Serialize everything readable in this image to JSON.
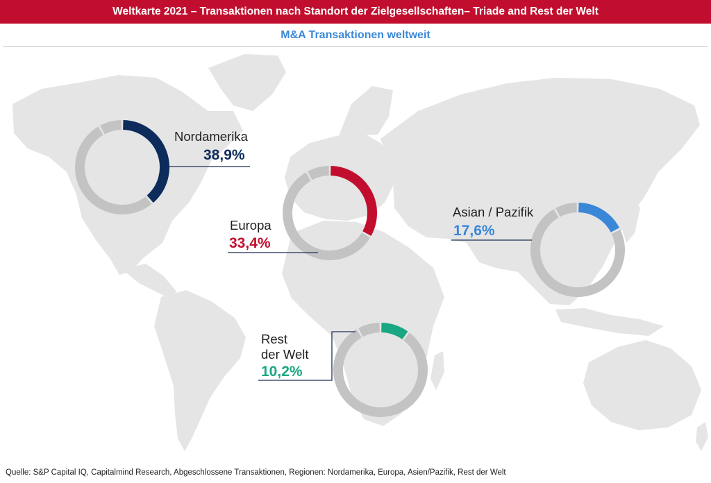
{
  "header": {
    "title": "Weltkarte 2021 – Transaktionen nach Standort der Zielgesellschaften– Triade and Rest der Welt",
    "subtitle": "M&A Transaktionen weltweit"
  },
  "chart_data": [
    {
      "type": "pie",
      "name": "Nordamerika",
      "values": [
        38.9,
        61.1
      ],
      "label": "Nordamerika",
      "value_label": "38,9%",
      "color": "#0d2c5c"
    },
    {
      "type": "pie",
      "name": "Europa",
      "values": [
        33.4,
        66.6
      ],
      "label": "Europa",
      "value_label": "33,4%",
      "color": "#c20e2e"
    },
    {
      "type": "pie",
      "name": "Asian / Pazifik",
      "values": [
        17.6,
        82.4
      ],
      "label": "Asian / Pazifik",
      "value_label": "17,6%",
      "color": "#3a87d8"
    },
    {
      "type": "pie",
      "name": "Rest der Welt",
      "values": [
        10.2,
        89.8
      ],
      "label_lines": [
        "Rest",
        "der Welt"
      ],
      "value_label": "10,2%",
      "color": "#1aa883"
    }
  ],
  "colors": {
    "remainder": "#c3c3c3",
    "map": "#e5e5e5"
  },
  "source": "Quelle: S&P Capital IQ, Capitalmind Research, Abgeschlossene Transaktionen, Regionen: Nordamerika, Europa, Asien/Pazifik, Rest der Welt"
}
